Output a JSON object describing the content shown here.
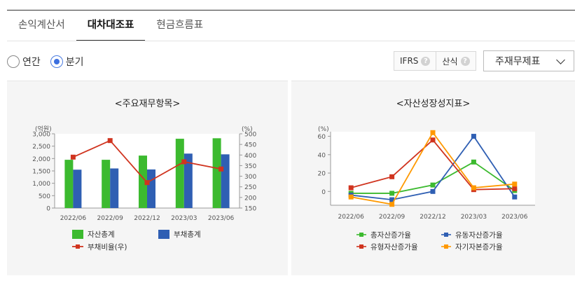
{
  "tabs": [
    "손익계산서",
    "대차대조표",
    "현금흐름표"
  ],
  "active_tab": 1,
  "period_options": [
    {
      "label": "연간",
      "checked": false
    },
    {
      "label": "분기",
      "checked": true
    }
  ],
  "controls": {
    "ifrs_label": "IFRS",
    "formula_label": "산식",
    "help_glyph": "?",
    "select_value": "주재무제표"
  },
  "colors": {
    "green": "#3cba2f",
    "blue": "#2f5fb3",
    "red": "#d0341f",
    "orange": "#ff9900",
    "text": "#333333"
  },
  "chart_data": [
    {
      "type": "bar",
      "title": "<주요재무항목>",
      "categories": [
        "2022/06",
        "2022/09",
        "2022/12",
        "2023/03",
        "2023/06"
      ],
      "y_unit_left": "(억원)",
      "y_unit_right": "(%)",
      "ylim": [
        0,
        3000
      ],
      "y2lim": [
        150,
        500
      ],
      "y_ticks": [
        "0",
        "500",
        "1,000",
        "1,500",
        "2,000",
        "2,500",
        "3,000"
      ],
      "y2_ticks": [
        "150",
        "200",
        "250",
        "300",
        "350",
        "400",
        "450",
        "500"
      ],
      "series": [
        {
          "name": "자산총계",
          "kind": "bar",
          "values": [
            1950,
            1950,
            2120,
            2800,
            2820
          ]
        },
        {
          "name": "부채총계",
          "kind": "bar",
          "values": [
            1550,
            1600,
            1560,
            2200,
            2170
          ]
        },
        {
          "name": "부채비율(우)",
          "kind": "line",
          "axis": "right",
          "values": [
            390,
            468,
            270,
            368,
            334
          ]
        }
      ],
      "legend": "bottom"
    },
    {
      "type": "line",
      "title": "<자산성장성지표>",
      "categories": [
        "2022/06",
        "2022/09",
        "2022/12",
        "2023/03",
        "2023/06"
      ],
      "y_unit": "(%)",
      "ylim": [
        -15,
        65
      ],
      "y_ticks": [
        "0",
        "20",
        "40",
        "60"
      ],
      "series": [
        {
          "name": "총자산증가율",
          "values": [
            -2,
            -2,
            7,
            32,
            1
          ]
        },
        {
          "name": "유동자산증가율",
          "values": [
            -4,
            -9,
            0,
            60,
            -6
          ]
        },
        {
          "name": "유형자산증가율",
          "values": [
            4,
            16,
            56,
            2,
            3
          ]
        },
        {
          "name": "자기자본증가율",
          "values": [
            -6,
            -14,
            64,
            4,
            8
          ]
        }
      ],
      "legend": "bottom"
    }
  ]
}
